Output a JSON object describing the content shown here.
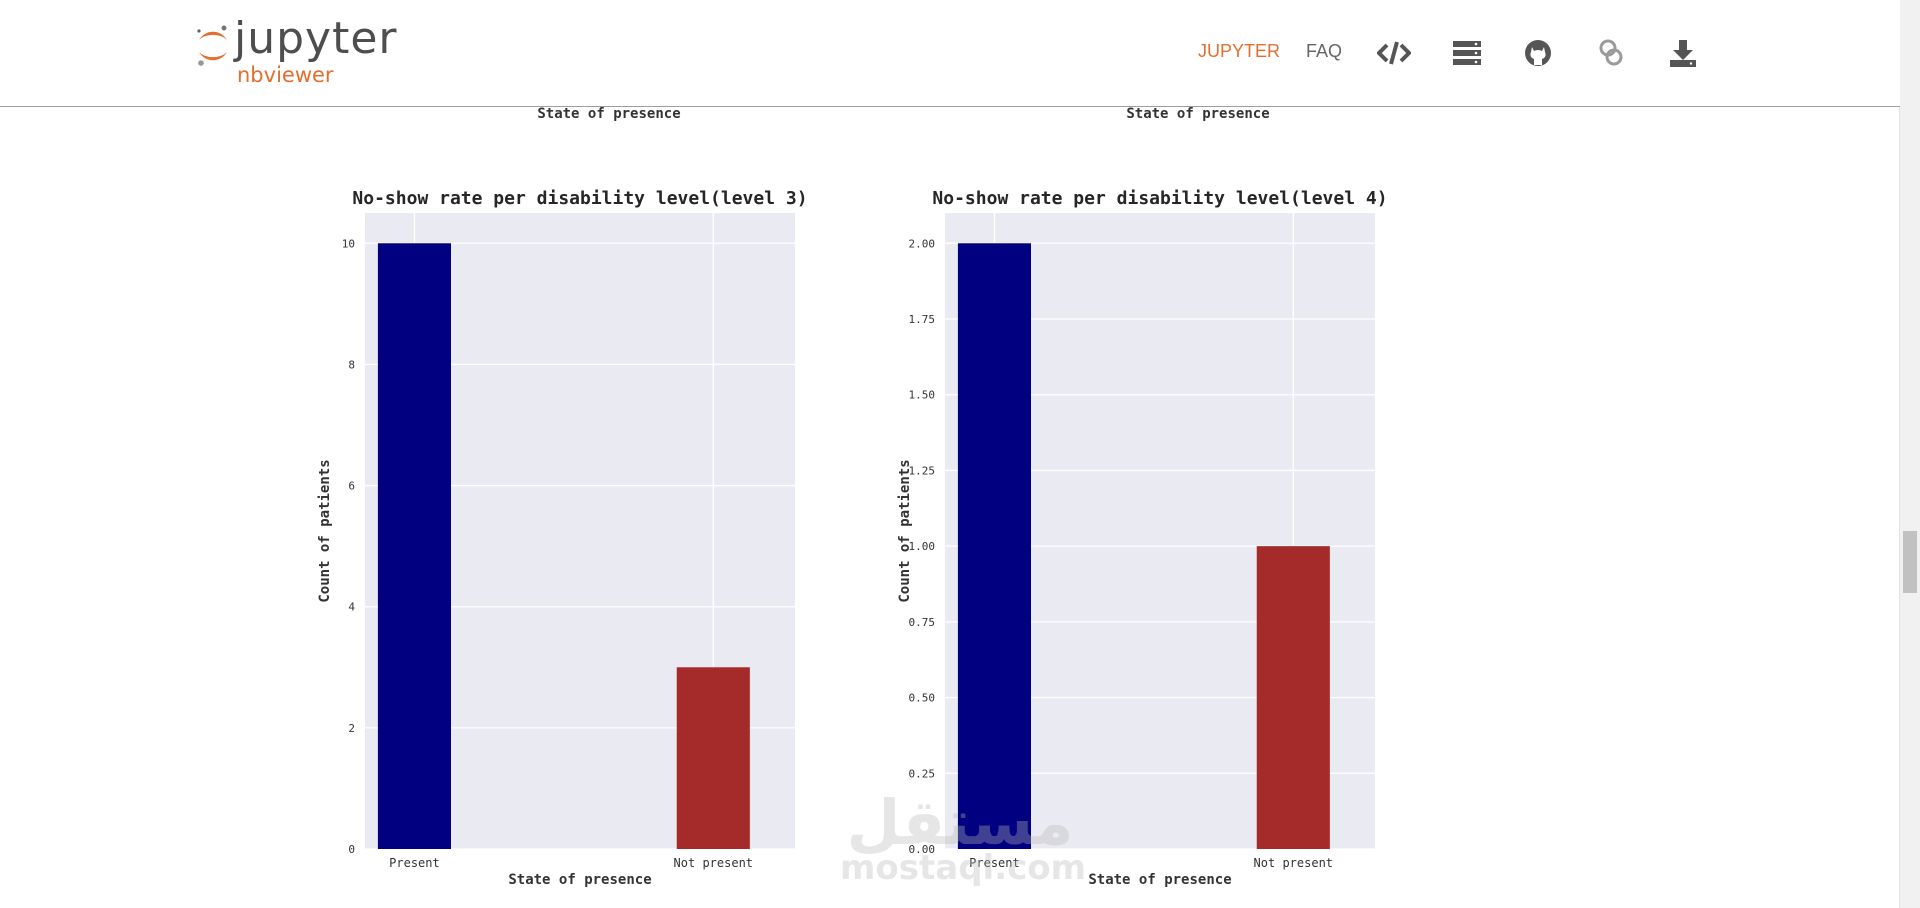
{
  "header": {
    "brand_word": "jupyter",
    "brand_sub": "nbviewer",
    "nav_jupyter": "JUPYTER",
    "nav_faq": "FAQ",
    "icons": [
      "code-icon",
      "server-icon",
      "github-icon",
      "nbviewer-link-icon",
      "download-icon"
    ],
    "accent_color": "#e46e2e"
  },
  "previous_charts": {
    "left_xlabel": "State of presence",
    "right_xlabel": "State of presence"
  },
  "watermark": {
    "arabic": "مستقل",
    "latin": "mostaql.com"
  },
  "chart_data": [
    {
      "type": "bar",
      "title": "No-show rate per disability level(level 3)",
      "xlabel": "State of presence",
      "ylabel": "Count of patients",
      "categories": [
        "Present",
        "Not present"
      ],
      "values": [
        10,
        3
      ],
      "colors": [
        "#000080",
        "#a52a2a"
      ],
      "ylim": [
        0,
        10.5
      ],
      "yticks": [
        0,
        2,
        4,
        6,
        8,
        10
      ],
      "ytick_labels": [
        "0",
        "2",
        "4",
        "6",
        "8",
        "10"
      ],
      "grid": true,
      "background": "#eaeaf2"
    },
    {
      "type": "bar",
      "title": "No-show rate per disability level(level 4)",
      "xlabel": "State of presence",
      "ylabel": "Count of patients",
      "categories": [
        "Present",
        "Not present"
      ],
      "values": [
        2,
        1
      ],
      "colors": [
        "#000080",
        "#a52a2a"
      ],
      "ylim": [
        0,
        2.1
      ],
      "yticks": [
        0,
        0.25,
        0.5,
        0.75,
        1.0,
        1.25,
        1.5,
        1.75,
        2.0
      ],
      "ytick_labels": [
        "0.00",
        "0.25",
        "0.50",
        "0.75",
        "1.00",
        "1.25",
        "1.50",
        "1.75",
        "2.00"
      ],
      "grid": true,
      "background": "#eaeaf2"
    }
  ]
}
